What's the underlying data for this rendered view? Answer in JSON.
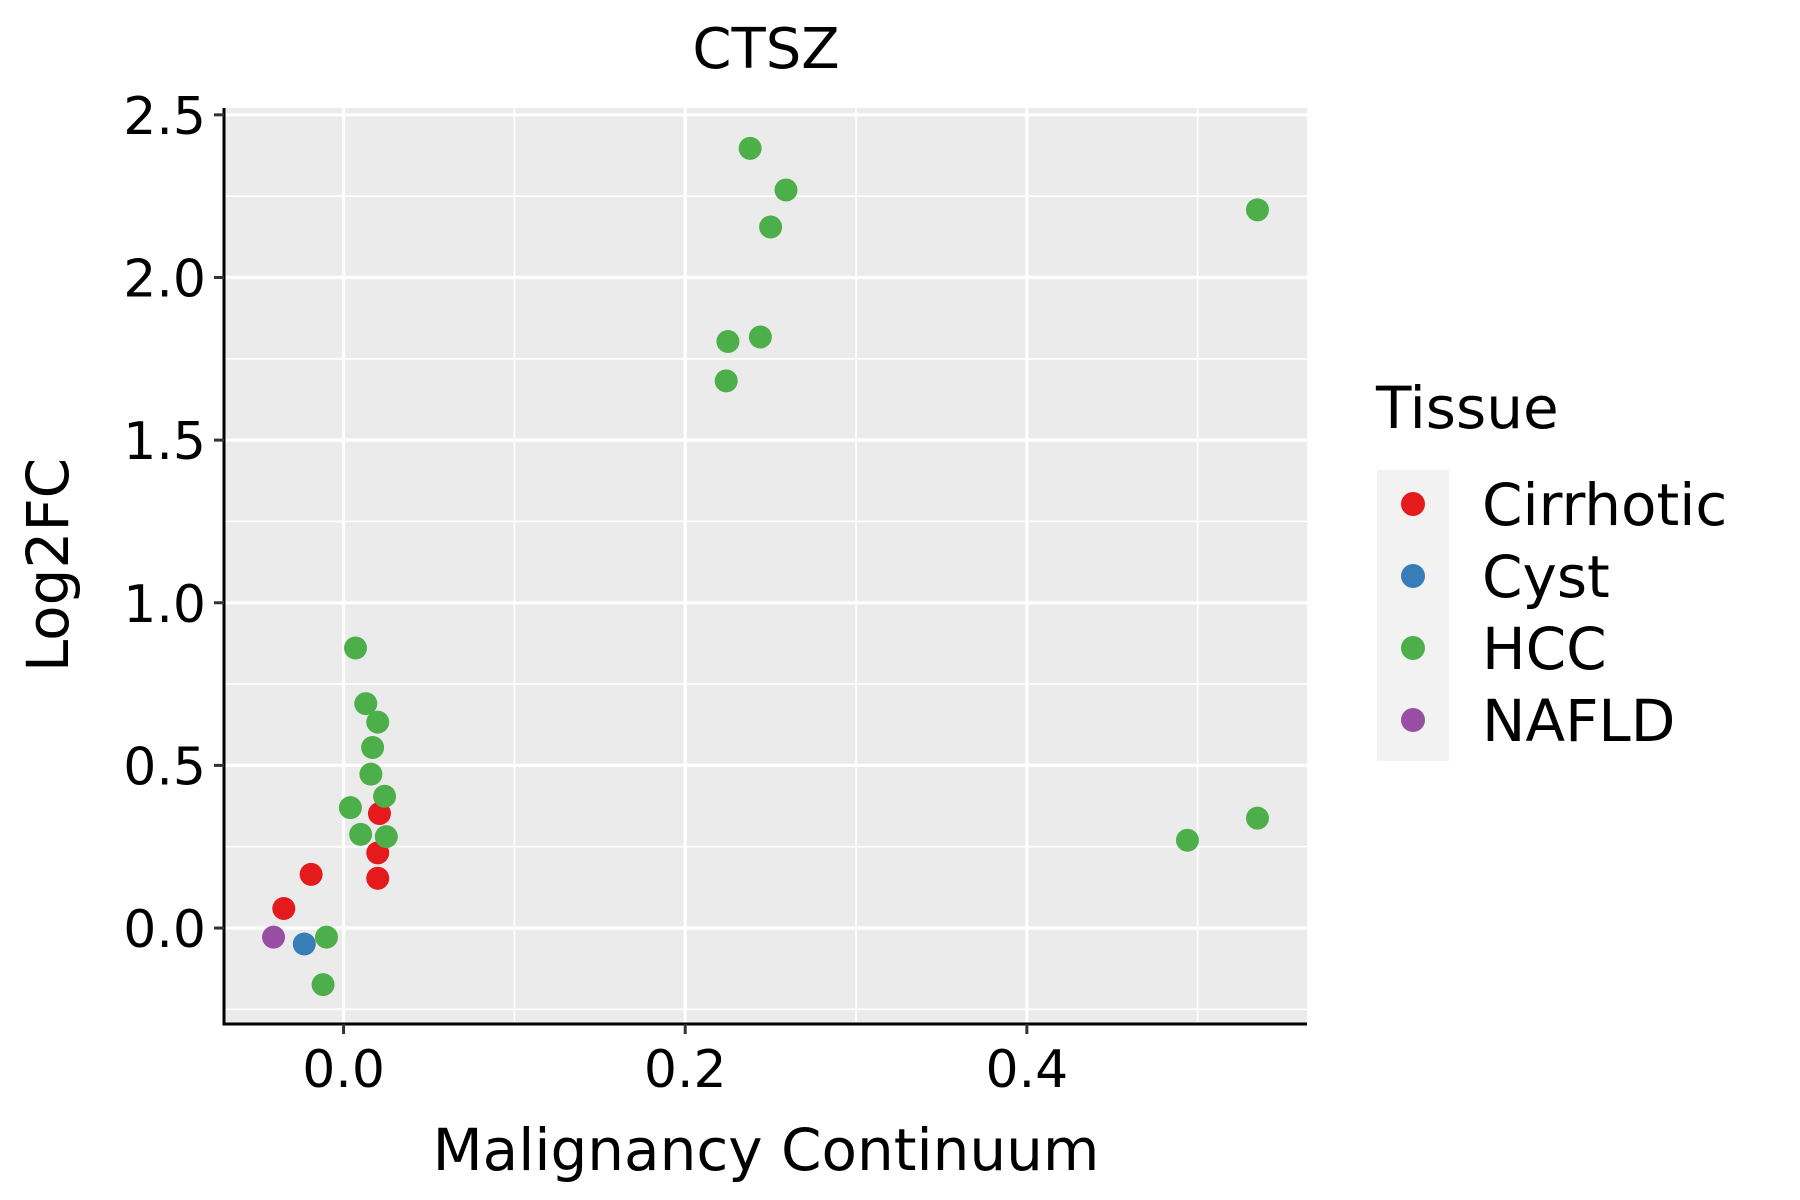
{
  "chart_data": {
    "type": "scatter",
    "title": "CTSZ",
    "xlabel": "Malignancy Continuum",
    "ylabel": "Log2FC",
    "xlim": [
      -0.07,
      0.564
    ],
    "ylim": [
      -0.295,
      2.521
    ],
    "xticks": [
      0.0,
      0.2,
      0.4
    ],
    "xtick_labels": [
      "0.0",
      "0.2",
      "0.4"
    ],
    "x_minor_gridlines": [
      -0.1,
      0.1,
      0.3,
      0.5
    ],
    "yticks": [
      0.0,
      0.5,
      1.0,
      1.5,
      2.0,
      2.5
    ],
    "ytick_labels": [
      "0.0",
      "0.5",
      "1.0",
      "1.5",
      "2.0",
      "2.5"
    ],
    "y_minor_gridlines": [
      -0.25,
      0.25,
      0.75,
      1.25,
      1.75,
      2.25
    ],
    "grid": true,
    "background": "#EBEBEB",
    "legend": {
      "title": "Tissue",
      "position": "right",
      "entries": [
        {
          "label": "Cirrhotic",
          "color": "#E41A1C"
        },
        {
          "label": "Cyst",
          "color": "#377EB8"
        },
        {
          "label": "HCC",
          "color": "#4DAF4A"
        },
        {
          "label": "NAFLD",
          "color": "#984EA3"
        }
      ]
    },
    "series": [
      {
        "name": "Cirrhotic",
        "color": "#E41A1C",
        "points": [
          {
            "x": -0.035,
            "y": 0.06
          },
          {
            "x": -0.019,
            "y": 0.165
          },
          {
            "x": 0.021,
            "y": 0.352
          },
          {
            "x": 0.02,
            "y": 0.231
          },
          {
            "x": 0.02,
            "y": 0.153
          }
        ]
      },
      {
        "name": "Cyst",
        "color": "#377EB8",
        "points": [
          {
            "x": -0.023,
            "y": -0.049
          }
        ]
      },
      {
        "name": "HCC",
        "color": "#4DAF4A",
        "points": [
          {
            "x": 0.238,
            "y": 2.397
          },
          {
            "x": 0.259,
            "y": 2.269
          },
          {
            "x": 0.25,
            "y": 2.155
          },
          {
            "x": 0.535,
            "y": 2.208
          },
          {
            "x": 0.225,
            "y": 1.803
          },
          {
            "x": 0.244,
            "y": 1.817
          },
          {
            "x": 0.224,
            "y": 1.682
          },
          {
            "x": 0.007,
            "y": 0.861
          },
          {
            "x": 0.013,
            "y": 0.69
          },
          {
            "x": 0.02,
            "y": 0.633
          },
          {
            "x": 0.017,
            "y": 0.555
          },
          {
            "x": 0.016,
            "y": 0.473
          },
          {
            "x": 0.024,
            "y": 0.405
          },
          {
            "x": 0.004,
            "y": 0.37
          },
          {
            "x": 0.01,
            "y": 0.288
          },
          {
            "x": 0.025,
            "y": 0.281
          },
          {
            "x": -0.01,
            "y": -0.028
          },
          {
            "x": -0.012,
            "y": -0.174
          },
          {
            "x": 0.494,
            "y": 0.27
          },
          {
            "x": 0.535,
            "y": 0.338
          }
        ]
      },
      {
        "name": "NAFLD",
        "color": "#984EA3",
        "points": [
          {
            "x": -0.041,
            "y": -0.028
          }
        ]
      }
    ]
  }
}
